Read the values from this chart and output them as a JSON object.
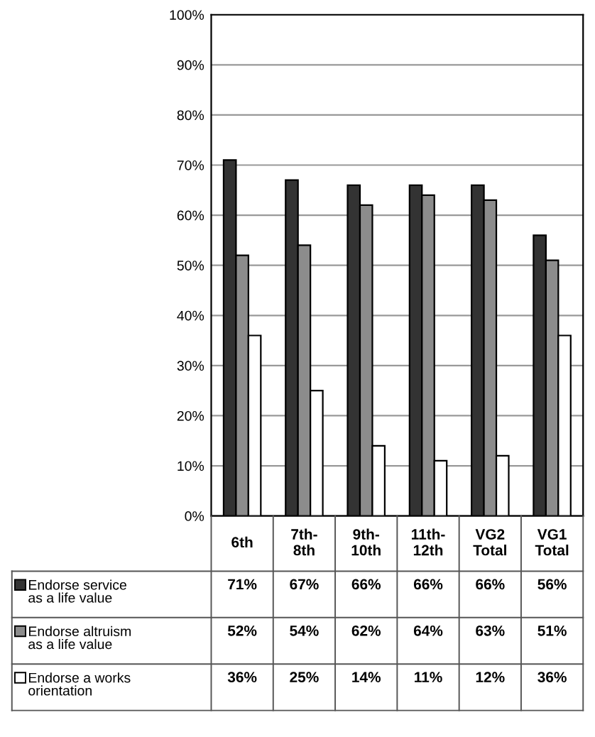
{
  "chart_data": {
    "type": "bar",
    "categories": [
      "6th",
      "7th-\n8th",
      "9th-\n10th",
      "11th-\n12th",
      "VG2\nTotal",
      "VG1\nTotal"
    ],
    "series": [
      {
        "name": "Endorse service\nas a life value",
        "color": "#333333",
        "values": [
          71,
          67,
          66,
          66,
          66,
          56
        ],
        "value_labels": [
          "71%",
          "67%",
          "66%",
          "66%",
          "66%",
          "56%"
        ]
      },
      {
        "name": "Endorse altruism\nas a life value",
        "color": "#8c8c8c",
        "values": [
          52,
          54,
          62,
          64,
          63,
          51
        ],
        "value_labels": [
          "52%",
          "54%",
          "62%",
          "64%",
          "63%",
          "51%"
        ]
      },
      {
        "name": "Endorse a works\norientation",
        "color": "#ffffff",
        "values": [
          36,
          25,
          14,
          11,
          12,
          36
        ],
        "value_labels": [
          "36%",
          "25%",
          "14%",
          "11%",
          "12%",
          "36%"
        ]
      }
    ],
    "ylim": [
      0,
      100
    ],
    "yticks": [
      {
        "value": 0,
        "label": "0%"
      },
      {
        "value": 10,
        "label": "10%"
      },
      {
        "value": 20,
        "label": "20%"
      },
      {
        "value": 30,
        "label": "30%"
      },
      {
        "value": 40,
        "label": "40%"
      },
      {
        "value": 50,
        "label": "50%"
      },
      {
        "value": 60,
        "label": "60%"
      },
      {
        "value": 70,
        "label": "70%"
      },
      {
        "value": 80,
        "label": "80%"
      },
      {
        "value": 90,
        "label": "90%"
      },
      {
        "value": 100,
        "label": "100%"
      }
    ],
    "grid": "y",
    "legend": "bottom left"
  }
}
